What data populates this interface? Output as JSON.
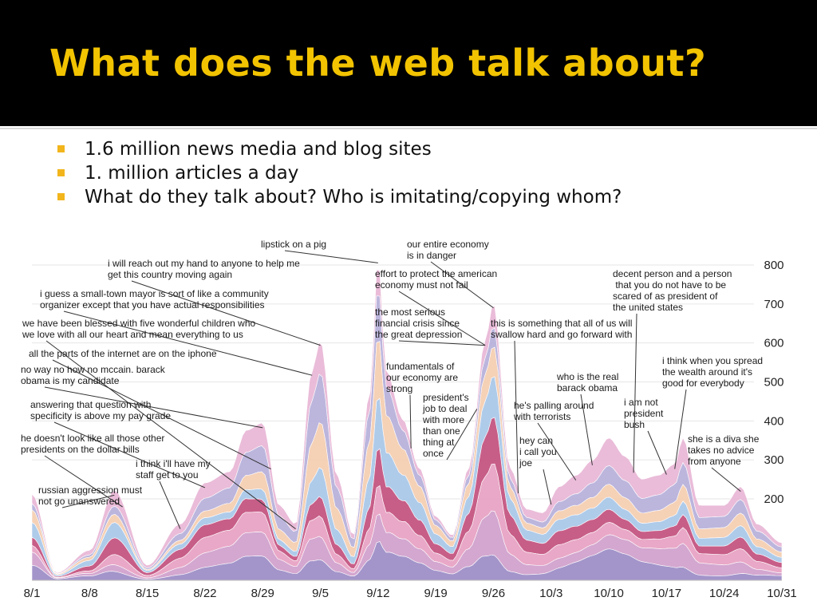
{
  "slide": {
    "title": "What does the web talk about?",
    "bullets": [
      "1.6 million news media and blog sites",
      "1. million articles a day",
      "What do they talk about? Who is imitating/copying whom?"
    ],
    "title_color": "#f2c300",
    "bullet_color": "#f2b51c"
  },
  "chart_data": {
    "type": "area",
    "stacked": true,
    "streamgraph": true,
    "x_ticks": [
      "8/1",
      "8/8",
      "8/15",
      "8/22",
      "8/29",
      "9/5",
      "9/12",
      "9/19",
      "9/26",
      "10/3",
      "10/10",
      "10/17",
      "10/24",
      "10/31"
    ],
    "y_ticks": [
      200,
      300,
      400,
      500,
      600,
      700,
      800
    ],
    "ylim": [
      0,
      880
    ],
    "grid": true,
    "total_volume": [
      [
        "8/1",
        230
      ],
      [
        "8/4",
        20
      ],
      [
        "8/8",
        80
      ],
      [
        "8/11",
        240
      ],
      [
        "8/15",
        40
      ],
      [
        "8/19",
        150
      ],
      [
        "8/22",
        260
      ],
      [
        "8/25",
        290
      ],
      [
        "8/27",
        400
      ],
      [
        "8/29",
        420
      ],
      [
        "8/31",
        200
      ],
      [
        "9/2",
        150
      ],
      [
        "9/4",
        560
      ],
      [
        "9/5",
        640
      ],
      [
        "9/7",
        280
      ],
      [
        "9/9",
        120
      ],
      [
        "9/11",
        500
      ],
      [
        "9/12",
        860
      ],
      [
        "9/13",
        560
      ],
      [
        "9/15",
        430
      ],
      [
        "9/17",
        300
      ],
      [
        "9/19",
        170
      ],
      [
        "9/21",
        120
      ],
      [
        "9/23",
        300
      ],
      [
        "9/25",
        640
      ],
      [
        "9/26",
        740
      ],
      [
        "9/28",
        300
      ],
      [
        "9/30",
        190
      ],
      [
        "10/2",
        180
      ],
      [
        "10/4",
        250
      ],
      [
        "10/6",
        280
      ],
      [
        "10/8",
        320
      ],
      [
        "10/10",
        380
      ],
      [
        "10/12",
        330
      ],
      [
        "10/14",
        270
      ],
      [
        "10/16",
        280
      ],
      [
        "10/18",
        310
      ],
      [
        "10/19",
        380
      ],
      [
        "10/21",
        200
      ],
      [
        "10/24",
        200
      ],
      [
        "10/26",
        250
      ],
      [
        "10/28",
        150
      ],
      [
        "10/31",
        100
      ]
    ],
    "series": [
      {
        "color": "#9b8cc6"
      },
      {
        "color": "#cfa0cc"
      },
      {
        "color": "#e7a1c2"
      },
      {
        "color": "#c2507e"
      },
      {
        "color": "#a8c7e8"
      },
      {
        "color": "#f4cdb0"
      },
      {
        "color": "#b6b0da"
      },
      {
        "color": "#e8b6d6"
      }
    ],
    "annotations": [
      {
        "text": "lipstick on a pig",
        "date": "9/12"
      },
      {
        "text": "our entire economy\nis in danger",
        "date": "9/26"
      },
      {
        "text": "i will reach out my hand to anyone to help me\nget this country moving again",
        "date": "9/5"
      },
      {
        "text": "effort to protect the american\neconomy must not fail",
        "date": "9/25"
      },
      {
        "text": "decent person and a person\n that you do not have to be\nscared of as president of\nthe united states",
        "date": "10/13"
      },
      {
        "text": "i guess a small-town mayor is sort of like a community\norganizer except that you have actual responsibilities",
        "date": "9/4"
      },
      {
        "text": "the most serious\nfinancial crisis since\nthe great depression",
        "date": "9/25"
      },
      {
        "text": "we have been blessed with five wonderful children who\nwe love with all our heart and mean everything to us",
        "date": "9/2"
      },
      {
        "text": "this is something that all of us will\nswallow hard and go forward with",
        "date": "9/29"
      },
      {
        "text": "all the parts of the internet are on the iphone",
        "date": "8/30"
      },
      {
        "text": "fundamentals of\nour economy are\nstrong",
        "date": "9/16"
      },
      {
        "text": "i think when you spread\nthe wealth around it's\ngood for everybody",
        "date": "10/18"
      },
      {
        "text": "no way no how no mccain. barack\nobama is my candidate",
        "date": "8/29"
      },
      {
        "text": "who is the real\nbarack obama",
        "date": "10/8"
      },
      {
        "text": "president's\njob to deal\nwith more\nthan one\nthing at\nonce",
        "date": "9/24"
      },
      {
        "text": "answering that question with\nspecificity is above my pay grade",
        "date": "8/22"
      },
      {
        "text": "he's palling around\nwith terrorists",
        "date": "10/6"
      },
      {
        "text": "i am not\npresident\nbush",
        "date": "10/17"
      },
      {
        "text": "he doesn't look like all those other\npresidents on the dollar bills",
        "date": "8/12"
      },
      {
        "text": "hey can\ni call you\njoe",
        "date": "10/3"
      },
      {
        "text": "she is a diva she\ntakes no advice\nfrom anyone",
        "date": "10/26"
      },
      {
        "text": "i think i'll have my\nstaff get to you",
        "date": "8/19"
      },
      {
        "text": "russian aggression must\nnot go unanswered",
        "date": "8/11"
      }
    ]
  }
}
